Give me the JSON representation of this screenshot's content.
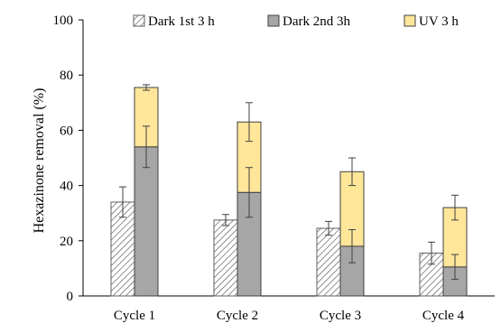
{
  "chart_data": {
    "type": "bar",
    "ylabel": "Hexazinone removal (%)",
    "ylim": [
      0,
      100
    ],
    "yticks": [
      0,
      20,
      40,
      60,
      80,
      100
    ],
    "categories": [
      "Cycle 1",
      "Cycle 2",
      "Cycle 3",
      "Cycle 4"
    ],
    "grid": false,
    "legend_position": "top",
    "series": [
      {
        "name": "Dark 1st 3 h",
        "values": [
          34,
          27.5,
          24.5,
          15.5
        ],
        "errors": [
          5.5,
          2,
          2.5,
          4
        ],
        "fill": "hatched",
        "color": "#ffffff"
      },
      {
        "name": "Dark 2nd 3h",
        "values": [
          54,
          37.5,
          18,
          10.5
        ],
        "errors": [
          7.5,
          9,
          6,
          4.5
        ],
        "fill": "solid",
        "color": "#a6a6a6",
        "stacked_on": null
      },
      {
        "name": "UV 3 h",
        "values": [
          21.5,
          25.5,
          27,
          21.5
        ],
        "errors": [
          1,
          7,
          5,
          4.5
        ],
        "fill": "solid",
        "color": "#ffe699",
        "stacked_on": "Dark 2nd 3h"
      }
    ]
  }
}
